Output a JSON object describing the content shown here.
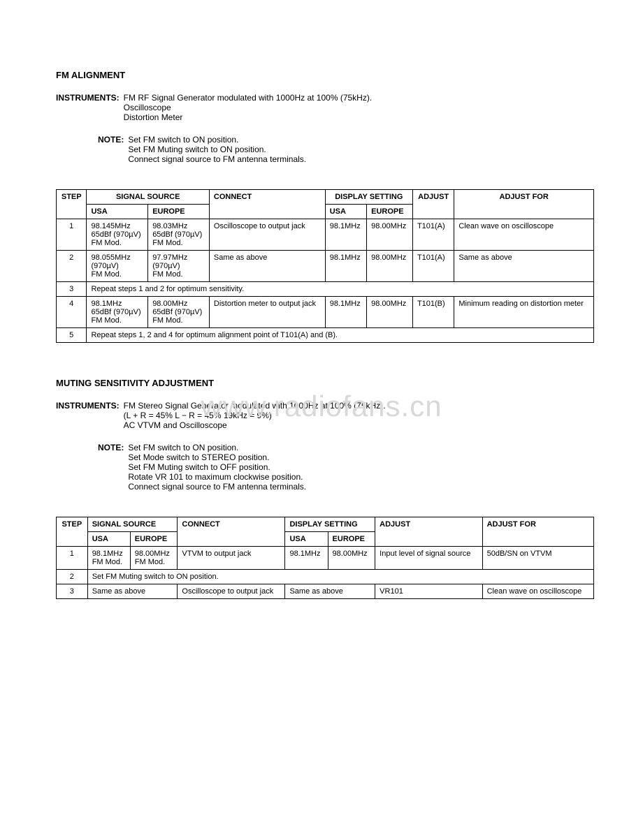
{
  "watermark": "www.radiofans.cn",
  "section1": {
    "title": "FM ALIGNMENT",
    "instruments_label": "INSTRUMENTS:",
    "instruments": [
      "FM RF Signal Generator modulated with 1000Hz at 100% (75kHz).",
      "Oscilloscope",
      "Distortion Meter"
    ],
    "note_label": "NOTE:",
    "notes": [
      "Set FM switch to ON position.",
      "Set FM Muting switch to ON position.",
      "Connect signal source to FM antenna terminals."
    ],
    "table": {
      "headers": {
        "step": "STEP",
        "signal_source": "SIGNAL SOURCE",
        "usa": "USA",
        "europe": "EUROPE",
        "connect": "CONNECT",
        "display_setting": "DISPLAY SETTING",
        "adjust": "ADJUST",
        "adjust_for": "ADJUST FOR"
      },
      "rows": [
        {
          "step": "1",
          "usa": "98.145MHz\n65dBf (970µV)\nFM Mod.",
          "europe": "98.03MHz\n65dBf (970µV)\nFM Mod.",
          "connect": "Oscilloscope to output jack",
          "disp_usa": "98.1MHz",
          "disp_eu": "98.00MHz",
          "adjust": "T101(A)",
          "adjust_for": "Clean wave on oscilloscope"
        },
        {
          "step": "2",
          "usa": "98.055MHz\n(970µV)\nFM Mod.",
          "europe": "97.97MHz\n(970µV)\nFM Mod.",
          "connect": "Same as above",
          "disp_usa": "98.1MHz",
          "disp_eu": "98.00MHz",
          "adjust": "T101(A)",
          "adjust_for": "Same as above"
        },
        {
          "step": "3",
          "span_text": "Repeat steps 1 and 2 for optimum sensitivity."
        },
        {
          "step": "4",
          "usa": "98.1MHz\n65dBf (970µV)\nFM Mod.",
          "europe": "98.00MHz\n65dBf (970µV)\nFM Mod.",
          "connect": "Distortion meter to output jack",
          "disp_usa": "98.1MHz",
          "disp_eu": "98.00MHz",
          "adjust": "T101(B)",
          "adjust_for": "Minimum reading on distortion meter"
        },
        {
          "step": "5",
          "span_text": "Repeat steps 1, 2 and 4 for optimum alignment point of T101(A) and (B)."
        }
      ]
    }
  },
  "section2": {
    "title": "MUTING SENSITIVITY ADJUSTMENT",
    "instruments_label": "INSTRUMENTS:",
    "instruments": [
      "FM Stereo Signal Generator modulated with 1000Hz at 100% (75kHz).",
      "(L + R = 45%   L − R = 45%   19kHz = 9%)",
      "AC VTVM and Oscilloscope"
    ],
    "note_label": "NOTE:",
    "notes": [
      "Set FM switch to ON position.",
      "Set Mode switch to STEREO position.",
      "Set FM Muting switch to OFF position.",
      "Rotate VR 101 to maximum clockwise position.",
      "Connect signal source to FM antenna terminals."
    ],
    "table": {
      "headers": {
        "step": "STEP",
        "signal_source": "SIGNAL SOURCE",
        "usa": "USA",
        "europe": "EUROPE",
        "connect": "CONNECT",
        "display_setting": "DISPLAY SETTING",
        "adjust": "ADJUST",
        "adjust_for": "ADJUST FOR"
      },
      "rows": [
        {
          "step": "1",
          "usa": "98.1MHz\nFM Mod.",
          "europe": "98.00MHz\nFM Mod.",
          "connect": "VTVM to output jack",
          "disp_usa": "98.1MHz",
          "disp_eu": "98.00MHz",
          "adjust": "Input level of signal source",
          "adjust_for": "50dB/SN on VTVM"
        },
        {
          "step": "2",
          "span_text": "Set FM Muting switch to ON position."
        },
        {
          "step": "3",
          "usa_span": "Same as above",
          "connect": "Oscilloscope to output jack",
          "disp_span": "Same as above",
          "adjust": "VR101",
          "adjust_for": "Clean wave on oscilloscope"
        }
      ]
    }
  }
}
